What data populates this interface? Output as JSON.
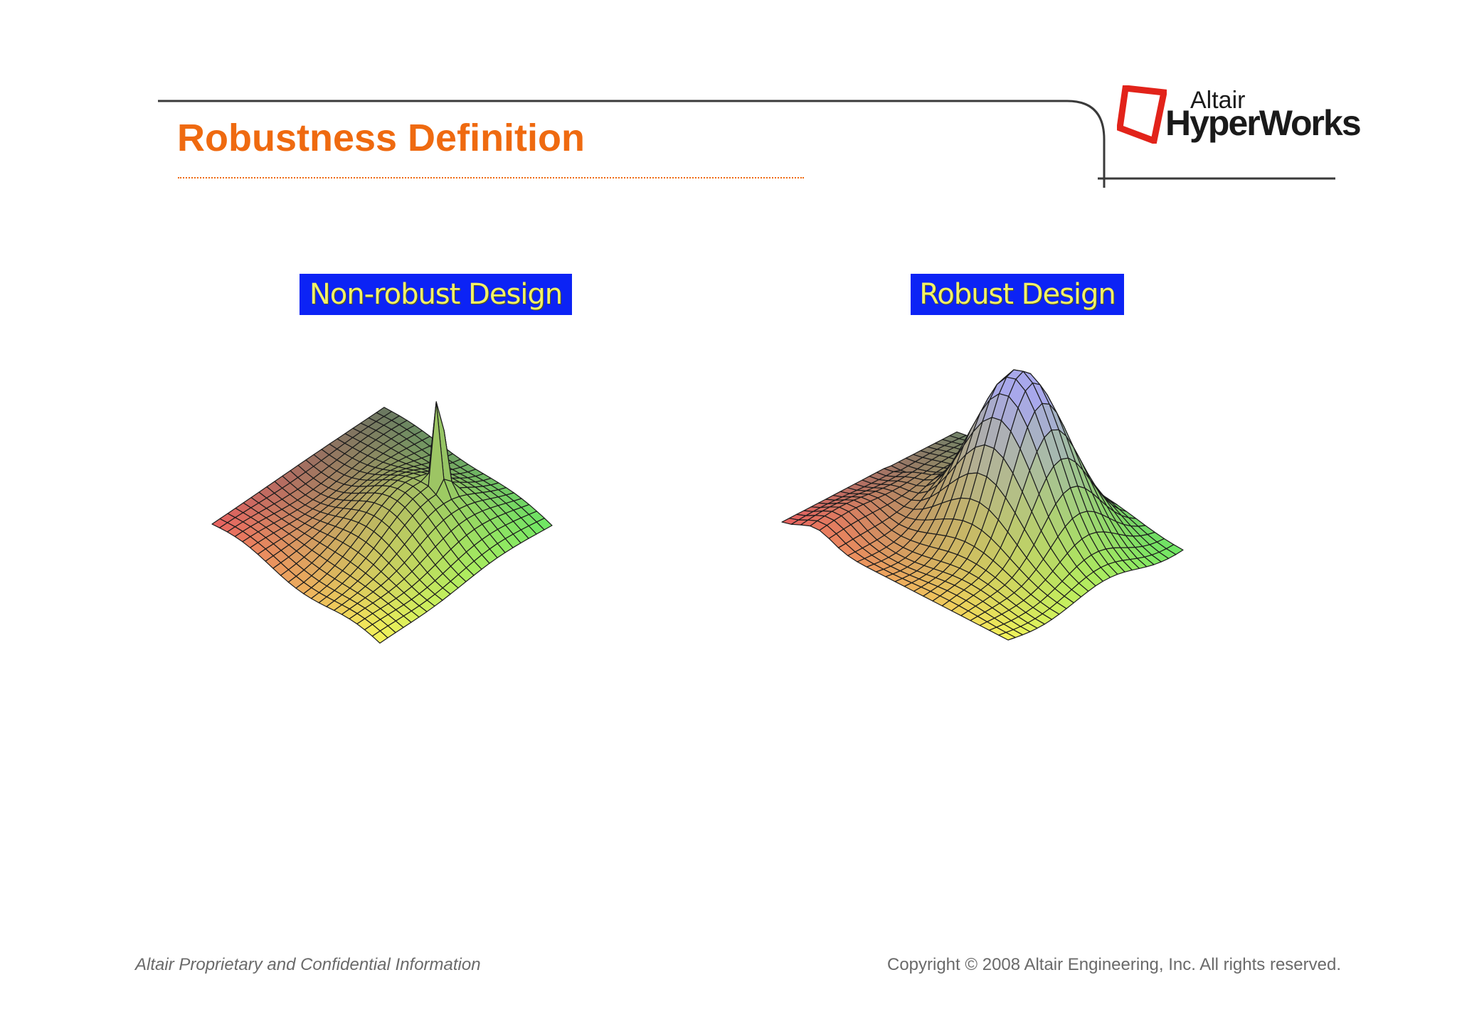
{
  "slide": {
    "title": "Robustness Definition"
  },
  "logo": {
    "altair": "Altair",
    "product": "HyperWorks",
    "mark_color": "#e2231a"
  },
  "plots": {
    "nonrobust_label": "Non-robust Design",
    "robust_label": "Robust Design",
    "label_background": "#0c23f5",
    "label_text_color": "#f1f168"
  },
  "footer": {
    "left": "Altair Proprietary and Confidential Information",
    "right": "Copyright © 2008 Altair Engineering, Inc. All rights reserved."
  },
  "colors": {
    "title": "#ef6a10",
    "rule": "#3a3a3a",
    "footer_text": "#6a6a6a"
  }
}
